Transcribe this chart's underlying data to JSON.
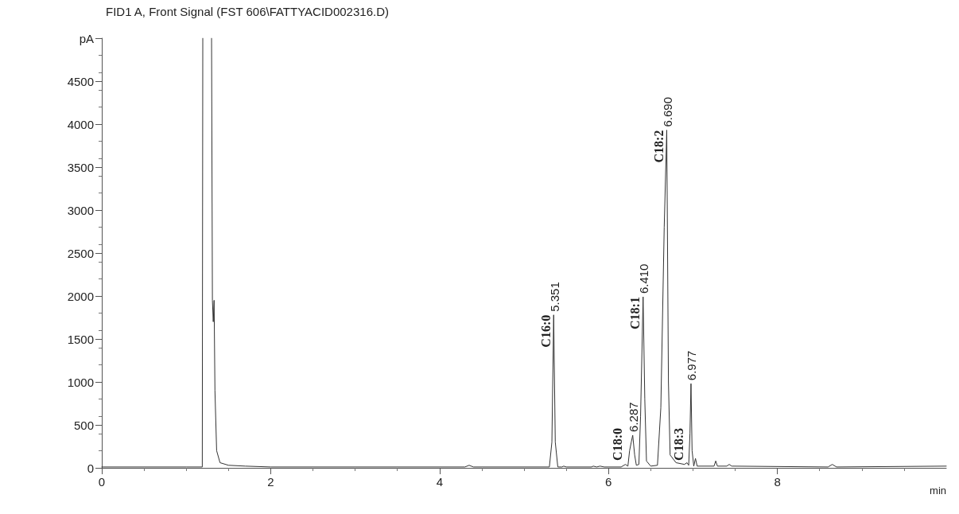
{
  "chart_data": {
    "type": "line",
    "title": "FID1 A, Front Signal (FST 606\\FATTYACID002316.D)",
    "xlabel": "min",
    "color": "#333333",
    "marker": "none",
    "line_style": "solid",
    "grid": false,
    "xlim": [
      0,
      10
    ],
    "xticks": [
      0,
      2,
      4,
      6,
      8
    ],
    "ylim": [
      0,
      5000
    ],
    "yticks": [
      0,
      500,
      1000,
      1500,
      2000,
      2500,
      3000,
      3500,
      4000,
      4500,
      {
        "value": 5000,
        "label": "pA"
      }
    ],
    "x": [
      0,
      1.0,
      1.19,
      1.196,
      1.25,
      1.3,
      1.31,
      1.32,
      1.33,
      1.34,
      1.36,
      1.4,
      1.5,
      1.7,
      2,
      4.3,
      4.35,
      4.4,
      5.3,
      5.33,
      5.351,
      5.37,
      5.4,
      5.45,
      5.47,
      5.5,
      5.8,
      5.82,
      5.86,
      5.9,
      5.95,
      6.15,
      6.2,
      6.23,
      6.25,
      6.27,
      6.287,
      6.31,
      6.33,
      6.36,
      6.38,
      6.41,
      6.43,
      6.45,
      6.5,
      6.58,
      6.62,
      6.66,
      6.69,
      6.71,
      6.73,
      6.8,
      6.9,
      6.93,
      6.95,
      6.965,
      6.977,
      6.99,
      7.01,
      7.03,
      7.05,
      7.1,
      7.25,
      7.27,
      7.29,
      7.4,
      7.43,
      7.46,
      8.6,
      8.65,
      8.7,
      10
    ],
    "values": [
      10,
      10,
      10,
      5000,
      null,
      5000,
      1950,
      1700,
      1950,
      900,
      200,
      60,
      30,
      20,
      10,
      10,
      30,
      10,
      10,
      300,
      1780,
      300,
      10,
      10,
      20,
      10,
      10,
      20,
      10,
      20,
      10,
      10,
      40,
      20,
      200,
      300,
      380,
      150,
      30,
      40,
      600,
      1990,
      800,
      80,
      20,
      30,
      700,
      2800,
      3930,
      1000,
      150,
      60,
      40,
      60,
      30,
      400,
      980,
      200,
      20,
      110,
      20,
      20,
      20,
      80,
      20,
      20,
      40,
      20,
      10,
      40,
      10,
      20
    ],
    "annotations": [
      {
        "text": "5.351",
        "x": 5.351,
        "y": 1780
      },
      {
        "text": "6.287",
        "x": 6.287,
        "y": 380
      },
      {
        "text": "6.410",
        "x": 6.41,
        "y": 1990
      },
      {
        "text": "6.690",
        "x": 6.69,
        "y": 3930
      },
      {
        "text": "6.977",
        "x": 6.977,
        "y": 980
      },
      {
        "text": "C16:0",
        "x": 5.351,
        "y": 1780
      },
      {
        "text": "C18:0",
        "x": 6.2,
        "y": 35
      },
      {
        "text": "C18:1",
        "x": 6.41,
        "y": 1990
      },
      {
        "text": "C18:2",
        "x": 6.69,
        "y": 3930
      },
      {
        "text": "C18:3",
        "x": 6.93,
        "y": 60
      }
    ]
  }
}
